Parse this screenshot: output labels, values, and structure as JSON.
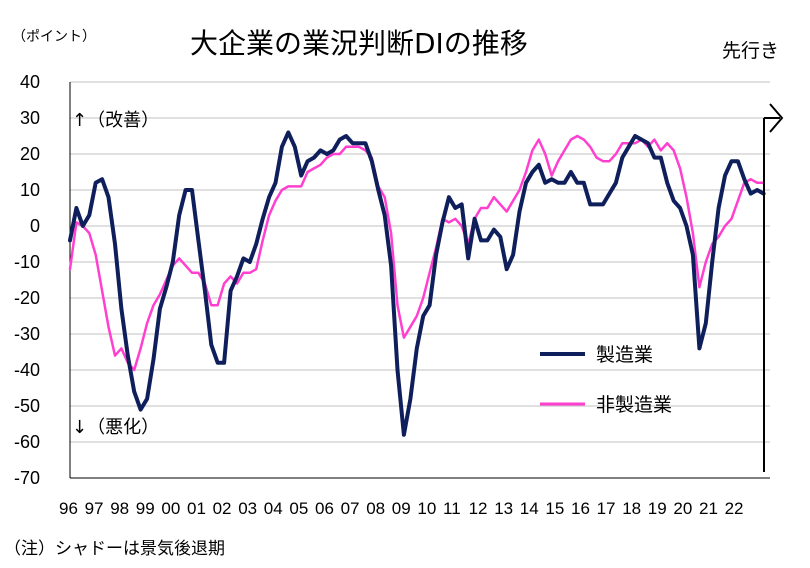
{
  "title": "大企業の業況判断DIの推移",
  "unit": "（ポイント）",
  "forecast_label": "先行き",
  "note": "（注）シャドーは景気後退期",
  "colors": {
    "manufacturing": "#0f1f5c",
    "non_manufacturing": "#ff3fd0",
    "axis": "#000000",
    "grid": "#c0c0c0"
  },
  "chart_data": {
    "type": "line",
    "title": "大企業の業況判断DIの推移",
    "ylabel": "（ポイント）",
    "ylim": [
      -70,
      40
    ],
    "yticks": [
      40,
      30,
      20,
      10,
      0,
      -10,
      -20,
      -30,
      -40,
      -50,
      -60,
      -70
    ],
    "xlim": [
      1996,
      2023.25
    ],
    "xtick_labels": [
      "96",
      "97",
      "98",
      "99",
      "00",
      "01",
      "02",
      "03",
      "04",
      "05",
      "06",
      "07",
      "08",
      "09",
      "10",
      "11",
      "12",
      "13",
      "14",
      "15",
      "16",
      "17",
      "18",
      "19",
      "20",
      "21",
      "22"
    ],
    "grid": "horizontal",
    "legend_position": "lower-right",
    "annotations": {
      "up": "↑（改善）",
      "down": "↓（悪化）"
    },
    "series": [
      {
        "name": "製造業",
        "x": [
          1996,
          1996.25,
          1996.5,
          1996.75,
          1997,
          1997.25,
          1997.5,
          1997.75,
          1998,
          1998.25,
          1998.5,
          1998.75,
          1999,
          1999.25,
          1999.5,
          1999.75,
          2000,
          2000.25,
          2000.5,
          2000.75,
          2001,
          2001.25,
          2001.5,
          2001.75,
          2002,
          2002.25,
          2002.5,
          2002.75,
          2003,
          2003.25,
          2003.5,
          2003.75,
          2004,
          2004.25,
          2004.5,
          2004.75,
          2005,
          2005.25,
          2005.5,
          2005.75,
          2006,
          2006.25,
          2006.5,
          2006.75,
          2007,
          2007.25,
          2007.5,
          2007.75,
          2008,
          2008.25,
          2008.5,
          2008.75,
          2009,
          2009.25,
          2009.5,
          2009.75,
          2010,
          2010.25,
          2010.5,
          2010.75,
          2011,
          2011.25,
          2011.5,
          2011.75,
          2012,
          2012.25,
          2012.5,
          2012.75,
          2013,
          2013.25,
          2013.5,
          2013.75,
          2014,
          2014.25,
          2014.5,
          2014.75,
          2015,
          2015.25,
          2015.5,
          2015.75,
          2016,
          2016.25,
          2016.5,
          2016.75,
          2017,
          2017.25,
          2017.5,
          2017.75,
          2018,
          2018.25,
          2018.5,
          2018.75,
          2019,
          2019.25,
          2019.5,
          2019.75,
          2020,
          2020.25,
          2020.5,
          2020.75,
          2021,
          2021.25,
          2021.5,
          2021.75,
          2022,
          2022.25,
          2022.5,
          2022.75,
          2023
        ],
        "values": [
          -4,
          5,
          0,
          3,
          12,
          13,
          8,
          -5,
          -23,
          -36,
          -46,
          -51,
          -48,
          -37,
          -23,
          -17,
          -10,
          3,
          10,
          10,
          -4,
          -18,
          -33,
          -38,
          -38,
          -18,
          -14,
          -9,
          -10,
          -5,
          2,
          8,
          12,
          22,
          26,
          22,
          14,
          18,
          19,
          21,
          20,
          21,
          24,
          25,
          23,
          23,
          23,
          18,
          10,
          3,
          -11,
          -40,
          -58,
          -48,
          -34,
          -25,
          -22,
          -8,
          1,
          8,
          5,
          6,
          -9,
          2,
          -4,
          -4,
          -1,
          -3,
          -12,
          -8,
          4,
          12,
          15,
          17,
          12,
          13,
          12,
          12,
          15,
          12,
          12,
          6,
          6,
          6,
          9,
          12,
          19,
          22,
          25,
          24,
          23,
          19,
          19,
          12,
          7,
          5,
          0,
          -8,
          -34,
          -27,
          -10,
          5,
          14,
          18,
          18,
          13,
          9,
          10,
          9
        ]
      },
      {
        "name": "非製造業",
        "x": [
          1996,
          1996.25,
          1996.5,
          1996.75,
          1997,
          1997.25,
          1997.5,
          1997.75,
          1998,
          1998.25,
          1998.5,
          1998.75,
          1999,
          1999.25,
          1999.5,
          1999.75,
          2000,
          2000.25,
          2000.5,
          2000.75,
          2001,
          2001.25,
          2001.5,
          2001.75,
          2002,
          2002.25,
          2002.5,
          2002.75,
          2003,
          2003.25,
          2003.5,
          2003.75,
          2004,
          2004.25,
          2004.5,
          2004.75,
          2005,
          2005.25,
          2005.5,
          2005.75,
          2006,
          2006.25,
          2006.5,
          2006.75,
          2007,
          2007.25,
          2007.5,
          2007.75,
          2008,
          2008.25,
          2008.5,
          2008.75,
          2009,
          2009.25,
          2009.5,
          2009.75,
          2010,
          2010.25,
          2010.5,
          2010.75,
          2011,
          2011.25,
          2011.5,
          2011.75,
          2012,
          2012.25,
          2012.5,
          2012.75,
          2013,
          2013.25,
          2013.5,
          2013.75,
          2014,
          2014.25,
          2014.5,
          2014.75,
          2015,
          2015.25,
          2015.5,
          2015.75,
          2016,
          2016.25,
          2016.5,
          2016.75,
          2017,
          2017.25,
          2017.5,
          2017.75,
          2018,
          2018.25,
          2018.5,
          2018.75,
          2019,
          2019.25,
          2019.5,
          2019.75,
          2020,
          2020.25,
          2020.5,
          2020.75,
          2021,
          2021.25,
          2021.5,
          2021.75,
          2022,
          2022.25,
          2022.5,
          2022.75,
          2023
        ],
        "values": [
          -12,
          1,
          0,
          -2,
          -8,
          -18,
          -28,
          -36,
          -34,
          -38,
          -40,
          -34,
          -27,
          -22,
          -19,
          -15,
          -11,
          -9,
          -11,
          -13,
          -13,
          -16,
          -22,
          -22,
          -16,
          -14,
          -16,
          -13,
          -13,
          -12,
          -4,
          3,
          7,
          10,
          11,
          11,
          11,
          15,
          16,
          17,
          19,
          20,
          20,
          22,
          22,
          22,
          21,
          19,
          11,
          8,
          -2,
          -22,
          -31,
          -28,
          -25,
          -20,
          -13,
          -6,
          2,
          1,
          2,
          0,
          -5,
          2,
          5,
          5,
          8,
          6,
          4,
          7,
          10,
          15,
          21,
          24,
          20,
          14,
          18,
          21,
          24,
          25,
          24,
          22,
          19,
          18,
          18,
          20,
          23,
          23,
          23,
          24,
          22,
          24,
          21,
          23,
          21,
          16,
          8,
          -2,
          -17,
          -10,
          -5,
          -3,
          0,
          2,
          7,
          12,
          13,
          12,
          12
        ]
      }
    ]
  }
}
